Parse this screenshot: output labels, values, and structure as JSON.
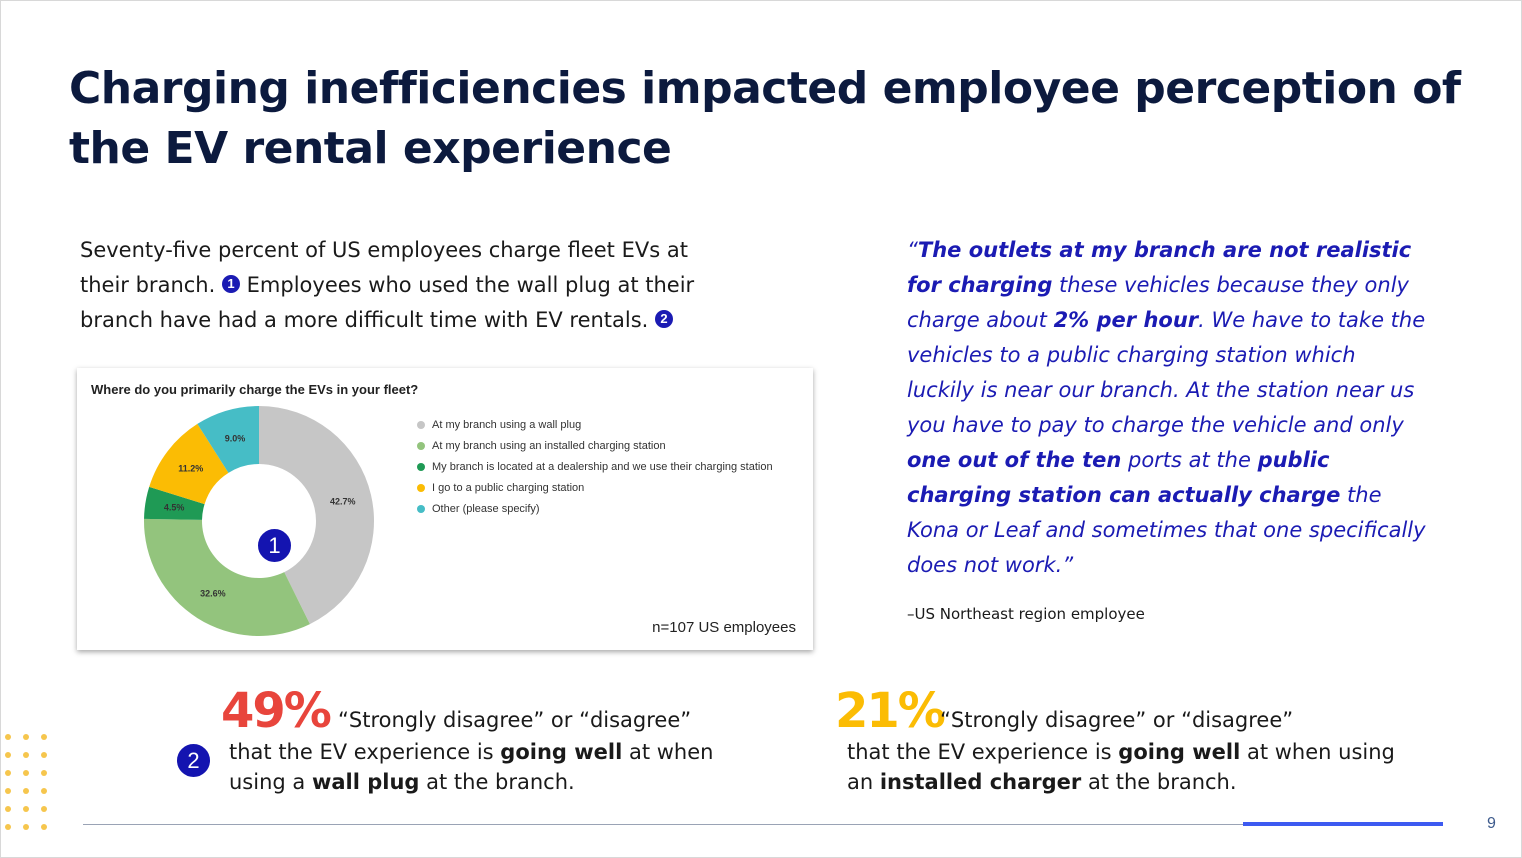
{
  "title": "Charging inefficiencies impacted employee perception of the EV rental experience",
  "intro": {
    "part1": "Seventy-five percent of US employees charge fleet EVs at their branch.",
    "badge1": "1",
    "part2": "Employees who used the wall plug at their branch have had a more difficult time with EV rentals.",
    "badge2": "2"
  },
  "chart_data": {
    "type": "pie",
    "title": "Where do you primarily charge the EVs in your fleet?",
    "categories": [
      "At my branch using a wall plug",
      "At my branch using an installed charging station",
      "My branch is located at a dealership and we use their charging station",
      "I go to a public charging station",
      "Other (please specify)"
    ],
    "values": [
      42.7,
      32.6,
      4.5,
      11.2,
      9.0
    ],
    "labels": [
      "42.7%",
      "32.6%",
      "4.5%",
      "11.2%",
      "9.0%"
    ],
    "colors": [
      "#c6c6c6",
      "#93c47d",
      "#1f9a55",
      "#fbbc04",
      "#46bdc6"
    ],
    "donut": true,
    "legend_position": "right",
    "note": "n=107 US employees",
    "badge": "1"
  },
  "quote": {
    "open": "“",
    "b1": "The outlets at my branch are not realistic for charging",
    "t1": " these vehicles because they only charge about ",
    "b2": "2% per hour",
    "t2": ". We have to take the vehicles to a public charging station which luckily is near our branch. At the station near us you have to pay to charge the vehicle and only ",
    "b3": "one out of the ten",
    "t3": " ports at the ",
    "b4": "public charging station can actually charge",
    "t4": " the Kona or Leaf and sometimes that one specifically does not work.”",
    "attribution": "–US Northeast region employee"
  },
  "stats": [
    {
      "value": "49%",
      "color": "#e8453c",
      "line1": "“Strongly disagree” or “disagree”",
      "l2a": "that the EV experience is ",
      "l2b": "going well",
      "l2c": " at when",
      "l3a": "using a ",
      "l3b": "wall plug",
      "l3c": " at the branch.",
      "badge": "2"
    },
    {
      "value": "21%",
      "color": "#fbbc04",
      "line1": "“Strongly disagree” or “disagree”",
      "l2a": "that the EV experience is ",
      "l2b": "going well",
      "l2c": " at when using",
      "l3a": "an ",
      "l3b": "installed charger",
      "l3c": " at the branch."
    }
  ],
  "page_number": "9"
}
